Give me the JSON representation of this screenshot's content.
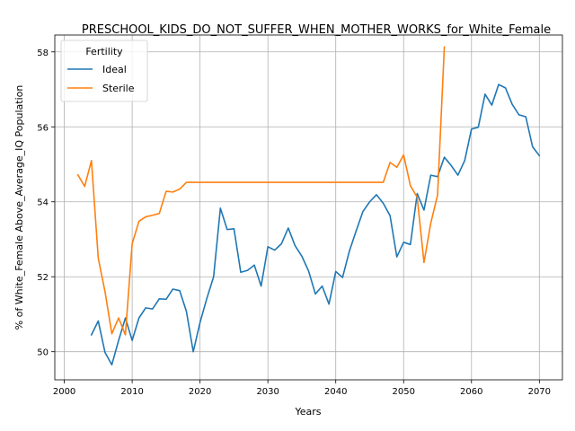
{
  "chart_data": {
    "type": "line",
    "title": "PRESCHOOL_KIDS_DO_NOT_SUFFER_WHEN_MOTHER_WORKS_for_White_Female",
    "xlabel": "Years",
    "ylabel": "% of White_Female Above_Average_IQ Population",
    "xlim": [
      1998.6,
      2073.4
    ],
    "ylim": [
      49.25,
      58.45
    ],
    "xticks": [
      2000,
      2010,
      2020,
      2030,
      2040,
      2050,
      2060,
      2070
    ],
    "yticks": [
      50,
      52,
      54,
      56,
      58
    ],
    "grid": true,
    "legend": {
      "title": "Fertility",
      "position": "top-left"
    },
    "series": [
      {
        "name": "Ideal",
        "color": "#1f77b4",
        "x": [
          2004,
          2005,
          2006,
          2007,
          2008,
          2009,
          2010,
          2011,
          2012,
          2013,
          2014,
          2015,
          2016,
          2017,
          2018,
          2019,
          2020,
          2021,
          2022,
          2023,
          2024,
          2025,
          2026,
          2027,
          2028,
          2029,
          2030,
          2031,
          2032,
          2033,
          2034,
          2035,
          2036,
          2037,
          2038,
          2039,
          2040,
          2041,
          2042,
          2043,
          2044,
          2045,
          2046,
          2047,
          2048,
          2049,
          2050,
          2051,
          2052,
          2053,
          2054,
          2055,
          2056,
          2057,
          2058,
          2059,
          2060,
          2061,
          2062,
          2063,
          2064,
          2065,
          2066,
          2067,
          2068,
          2069,
          2070
        ],
        "y": [
          50.45,
          50.82,
          49.98,
          49.65,
          50.3,
          50.9,
          50.3,
          50.9,
          51.17,
          51.14,
          51.41,
          51.4,
          51.67,
          51.63,
          51.07,
          50.0,
          50.78,
          51.42,
          52.0,
          53.83,
          53.26,
          53.28,
          52.12,
          52.17,
          52.31,
          51.75,
          52.8,
          52.71,
          52.88,
          53.3,
          52.83,
          52.55,
          52.15,
          51.54,
          51.75,
          51.27,
          52.14,
          51.98,
          52.68,
          53.22,
          53.74,
          54.0,
          54.19,
          53.96,
          53.63,
          52.53,
          52.92,
          52.86,
          54.22,
          53.78,
          54.71,
          54.67,
          55.19,
          54.97,
          54.71,
          55.1,
          55.94,
          55.99,
          56.87,
          56.58,
          57.13,
          57.04,
          56.6,
          56.32,
          56.27,
          55.47,
          55.23
        ]
      },
      {
        "name": "Sterile",
        "color": "#ff7f0e",
        "x": [
          2002,
          2003,
          2004,
          2005,
          2006,
          2007,
          2008,
          2009,
          2010,
          2011,
          2012,
          2013,
          2014,
          2015,
          2016,
          2017,
          2018,
          2019,
          2020,
          2021,
          2022,
          2023,
          2024,
          2025,
          2026,
          2027,
          2028,
          2029,
          2030,
          2031,
          2032,
          2033,
          2034,
          2035,
          2036,
          2037,
          2038,
          2039,
          2040,
          2041,
          2042,
          2043,
          2044,
          2045,
          2046,
          2047,
          2048,
          2049,
          2050,
          2051,
          2052,
          2053,
          2054,
          2055,
          2056
        ],
        "y": [
          54.72,
          54.41,
          55.1,
          52.5,
          51.6,
          50.48,
          50.9,
          50.45,
          52.88,
          53.48,
          53.6,
          53.64,
          53.69,
          54.28,
          54.26,
          54.34,
          54.52,
          54.52,
          54.52,
          54.52,
          54.52,
          54.52,
          54.52,
          54.52,
          54.52,
          54.52,
          54.52,
          54.52,
          54.52,
          54.52,
          54.52,
          54.52,
          54.52,
          54.52,
          54.52,
          54.52,
          54.52,
          54.52,
          54.52,
          54.52,
          54.52,
          54.52,
          54.52,
          54.52,
          54.52,
          54.52,
          55.05,
          54.92,
          55.25,
          54.43,
          54.12,
          52.38,
          53.43,
          54.18,
          58.13
        ]
      }
    ]
  }
}
